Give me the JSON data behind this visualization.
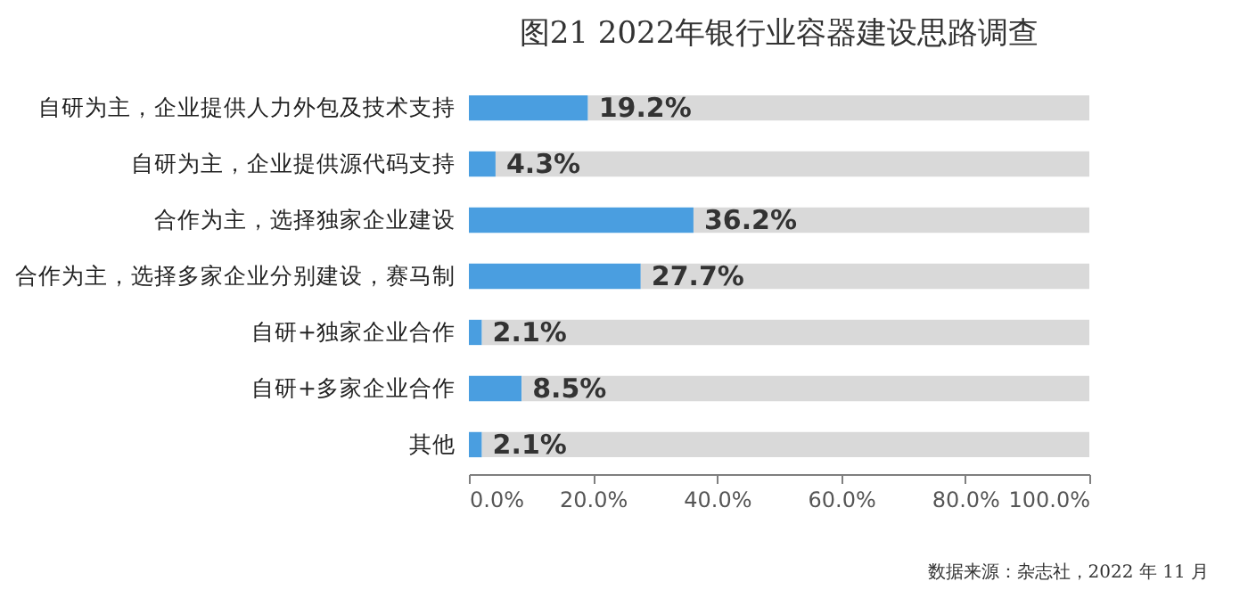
{
  "chart_data": {
    "type": "bar",
    "orientation": "horizontal",
    "title": "图21 2022年银行业容器建设思路调查",
    "categories": [
      "自研为主，企业提供人力外包及技术支持",
      "自研为主，企业提供源代码支持",
      "合作为主，选择独家企业建设",
      "合作为主，选择多家企业分别建设，赛马制",
      "自研+独家企业合作",
      "自研+多家企业合作",
      "其他"
    ],
    "stacked": true,
    "series": [
      {
        "color": "#4a9ee0",
        "values": [
          19.2,
          4.3,
          36.2,
          27.7,
          2.1,
          8.5,
          2.1
        ],
        "value_labels": [
          "19.2%",
          "4.3%",
          "36.2%",
          "27.7%",
          "2.1%",
          "8.5%",
          "2.1%"
        ]
      },
      {
        "color": "#d9d9d9",
        "values": [
          80.8,
          95.7,
          63.8,
          72.3,
          97.9,
          91.5,
          97.9
        ]
      }
    ],
    "xlim": [
      0,
      100
    ],
    "xticks": [
      {
        "value": 0,
        "label": "0.0%"
      },
      {
        "value": 20,
        "label": "20.0%"
      },
      {
        "value": 40,
        "label": "40.0%"
      },
      {
        "value": 60,
        "label": "60.0%"
      },
      {
        "value": 80,
        "label": "80.0%"
      },
      {
        "value": 100,
        "label": "100.0%"
      }
    ],
    "annotations": [
      "数据来源：杂志社，2022 年 11 月"
    ]
  }
}
